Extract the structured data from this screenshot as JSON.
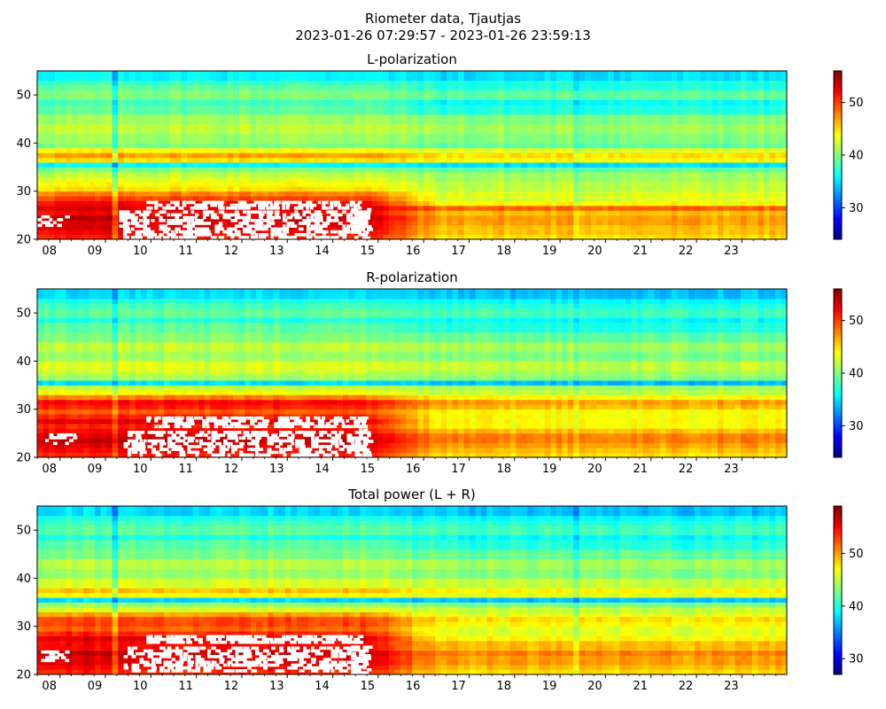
{
  "figure": {
    "title_line1": "Riometer data, Tjautjas",
    "title_line2": "2023-01-26 07:29:57 - 2023-01-26 23:59:13"
  },
  "colormap": [
    "#00007f",
    "#0000ff",
    "#007fff",
    "#00ffff",
    "#7fff7f",
    "#ffff00",
    "#ff7f00",
    "#ff0000",
    "#7f0000"
  ],
  "chart_data": [
    {
      "type": "heatmap",
      "title": "L-polarization",
      "x_range": [
        "2023-01-26 07:29:57",
        "2023-01-26 23:59:13"
      ],
      "x_ticks": [
        "08",
        "09",
        "10",
        "11",
        "12",
        "13",
        "14",
        "15",
        "16",
        "17",
        "18",
        "19",
        "20",
        "21",
        "22",
        "23"
      ],
      "ylim": [
        20,
        55
      ],
      "y_ticks": [
        20,
        30,
        40,
        50
      ],
      "colorbar": {
        "range": [
          24,
          56
        ],
        "ticks": [
          30,
          40,
          50
        ]
      },
      "bands": [
        {
          "y": [
            20,
            21
          ],
          "before_15": 51,
          "after_15": 45
        },
        {
          "y": [
            21,
            22
          ],
          "before_15": 52,
          "after_15": 46
        },
        {
          "y": [
            22,
            23
          ],
          "before_15": 53,
          "after_15": 46
        },
        {
          "y": [
            23,
            24
          ],
          "before_15": 53,
          "after_15": 47
        },
        {
          "y": [
            24,
            25
          ],
          "before_15": 54,
          "after_15": 47
        },
        {
          "y": [
            25,
            26
          ],
          "before_15": 52,
          "after_15": 46
        },
        {
          "y": [
            26,
            27
          ],
          "before_15": 53,
          "after_15": 49
        },
        {
          "y": [
            27,
            28
          ],
          "before_15": 52,
          "after_15": 44
        },
        {
          "y": [
            28,
            29
          ],
          "before_15": 50,
          "after_15": 43
        },
        {
          "y": [
            29,
            30
          ],
          "before_15": 48,
          "after_15": 43
        },
        {
          "y": [
            30,
            31
          ],
          "before_15": 45,
          "after_15": 42
        },
        {
          "y": [
            31,
            32
          ],
          "before_15": 44,
          "after_15": 42
        },
        {
          "y": [
            32,
            33
          ],
          "before_15": 43,
          "after_15": 41
        },
        {
          "y": [
            33,
            34
          ],
          "before_15": 42,
          "after_15": 41
        },
        {
          "y": [
            34,
            35
          ],
          "before_15": 40,
          "after_15": 39
        },
        {
          "y": [
            35,
            36
          ],
          "before_15": 36,
          "after_15": 35
        },
        {
          "y": [
            36,
            37
          ],
          "before_15": 45,
          "after_15": 44
        },
        {
          "y": [
            37,
            38
          ],
          "before_15": 47,
          "after_15": 45
        },
        {
          "y": [
            38,
            39
          ],
          "before_15": 44,
          "after_15": 43
        },
        {
          "y": [
            39,
            40
          ],
          "before_15": 40,
          "after_15": 39
        },
        {
          "y": [
            40,
            42
          ],
          "before_15": 41,
          "after_15": 40
        },
        {
          "y": [
            42,
            44
          ],
          "before_15": 42,
          "after_15": 41
        },
        {
          "y": [
            44,
            46
          ],
          "before_15": 41,
          "after_15": 40
        },
        {
          "y": [
            46,
            48
          ],
          "before_15": 39,
          "after_15": 37
        },
        {
          "y": [
            48,
            49
          ],
          "before_15": 38,
          "after_15": 36
        },
        {
          "y": [
            49,
            51
          ],
          "before_15": 40,
          "after_15": 39
        },
        {
          "y": [
            51,
            52
          ],
          "before_15": 39,
          "after_15": 37
        },
        {
          "y": [
            52,
            53
          ],
          "before_15": 38,
          "after_15": 37
        },
        {
          "y": [
            53,
            55
          ],
          "before_15": 36,
          "after_15": 35
        }
      ],
      "saturated_regions": [
        {
          "t": [
            9.9,
            14.6
          ],
          "y": [
            26.5,
            28
          ],
          "density": 0.7
        },
        {
          "t": [
            9.3,
            14.7
          ],
          "y": [
            20.5,
            26
          ],
          "density": 0.55
        },
        {
          "t": [
            7.5,
            8.2
          ],
          "y": [
            23,
            25
          ],
          "density": 0.4
        },
        {
          "t": [
            14.4,
            14.8
          ],
          "y": [
            20,
            26.5
          ],
          "density": 0.6
        }
      ]
    },
    {
      "type": "heatmap",
      "title": "R-polarization",
      "x_range": [
        "2023-01-26 07:29:57",
        "2023-01-26 23:59:13"
      ],
      "x_ticks": [
        "08",
        "09",
        "10",
        "11",
        "12",
        "13",
        "14",
        "15",
        "16",
        "17",
        "18",
        "19",
        "20",
        "21",
        "22",
        "23"
      ],
      "ylim": [
        20,
        55
      ],
      "y_ticks": [
        20,
        30,
        40,
        50
      ],
      "colorbar": {
        "range": [
          24,
          56
        ],
        "ticks": [
          30,
          40,
          50
        ]
      },
      "bands": [
        {
          "y": [
            20,
            21
          ],
          "before_15": 51,
          "after_15": 45
        },
        {
          "y": [
            21,
            22
          ],
          "before_15": 52,
          "after_15": 46
        },
        {
          "y": [
            22,
            23
          ],
          "before_15": 53,
          "after_15": 47
        },
        {
          "y": [
            23,
            24
          ],
          "before_15": 54,
          "after_15": 48
        },
        {
          "y": [
            24,
            25
          ],
          "before_15": 53,
          "after_15": 48
        },
        {
          "y": [
            25,
            26
          ],
          "before_15": 52,
          "after_15": 46
        },
        {
          "y": [
            26,
            27
          ],
          "before_15": 51,
          "after_15": 44
        },
        {
          "y": [
            27,
            28
          ],
          "before_15": 53,
          "after_15": 44
        },
        {
          "y": [
            28,
            29
          ],
          "before_15": 51,
          "after_15": 44
        },
        {
          "y": [
            29,
            30
          ],
          "before_15": 49,
          "after_15": 44
        },
        {
          "y": [
            30,
            31
          ],
          "before_15": 51,
          "after_15": 46
        },
        {
          "y": [
            31,
            32
          ],
          "before_15": 52,
          "after_15": 47
        },
        {
          "y": [
            32,
            33
          ],
          "before_15": 48,
          "after_15": 44
        },
        {
          "y": [
            33,
            34
          ],
          "before_15": 44,
          "after_15": 42
        },
        {
          "y": [
            34,
            35
          ],
          "before_15": 42,
          "after_15": 41
        },
        {
          "y": [
            35,
            36
          ],
          "before_15": 35,
          "after_15": 34
        },
        {
          "y": [
            36,
            37
          ],
          "before_15": 41,
          "after_15": 40
        },
        {
          "y": [
            37,
            38
          ],
          "before_15": 42,
          "after_15": 41
        },
        {
          "y": [
            38,
            40
          ],
          "before_15": 43,
          "after_15": 42
        },
        {
          "y": [
            40,
            42
          ],
          "before_15": 41,
          "after_15": 40
        },
        {
          "y": [
            42,
            44
          ],
          "before_15": 42,
          "after_15": 41
        },
        {
          "y": [
            44,
            46
          ],
          "before_15": 40,
          "after_15": 39
        },
        {
          "y": [
            46,
            48
          ],
          "before_15": 39,
          "after_15": 37
        },
        {
          "y": [
            48,
            49
          ],
          "before_15": 37,
          "after_15": 36
        },
        {
          "y": [
            49,
            51
          ],
          "before_15": 39,
          "after_15": 38
        },
        {
          "y": [
            51,
            52
          ],
          "before_15": 38,
          "after_15": 37
        },
        {
          "y": [
            52,
            53
          ],
          "before_15": 37,
          "after_15": 36
        },
        {
          "y": [
            53,
            55
          ],
          "before_15": 35,
          "after_15": 34
        }
      ],
      "saturated_regions": [
        {
          "t": [
            9.9,
            14.7
          ],
          "y": [
            26.5,
            28.5
          ],
          "density": 0.65
        },
        {
          "t": [
            9.4,
            14.7
          ],
          "y": [
            20.5,
            25.5
          ],
          "density": 0.55
        },
        {
          "t": [
            7.5,
            8.3
          ],
          "y": [
            23,
            25
          ],
          "density": 0.45
        },
        {
          "t": [
            14.4,
            14.8
          ],
          "y": [
            20,
            26
          ],
          "density": 0.55
        }
      ]
    },
    {
      "type": "heatmap",
      "title": "Total power (L + R)",
      "x_range": [
        "2023-01-26 07:29:57",
        "2023-01-26 23:59:13"
      ],
      "x_ticks": [
        "08",
        "09",
        "10",
        "11",
        "12",
        "13",
        "14",
        "15",
        "16",
        "17",
        "18",
        "19",
        "20",
        "21",
        "22",
        "23"
      ],
      "ylim": [
        20,
        55
      ],
      "y_ticks": [
        20,
        30,
        40,
        50
      ],
      "colorbar": {
        "range": [
          27,
          59
        ],
        "ticks": [
          30,
          40,
          50
        ]
      },
      "bands": [
        {
          "y": [
            20,
            21
          ],
          "before_15": 54,
          "after_15": 48
        },
        {
          "y": [
            21,
            22
          ],
          "before_15": 55,
          "after_15": 49
        },
        {
          "y": [
            22,
            23
          ],
          "before_15": 56,
          "after_15": 50
        },
        {
          "y": [
            23,
            24
          ],
          "before_15": 56,
          "after_15": 50
        },
        {
          "y": [
            24,
            25
          ],
          "before_15": 57,
          "after_15": 51
        },
        {
          "y": [
            25,
            26
          ],
          "before_15": 55,
          "after_15": 49
        },
        {
          "y": [
            26,
            27
          ],
          "before_15": 55,
          "after_15": 49
        },
        {
          "y": [
            27,
            28
          ],
          "before_15": 56,
          "after_15": 47
        },
        {
          "y": [
            28,
            29
          ],
          "before_15": 54,
          "after_15": 46
        },
        {
          "y": [
            29,
            30
          ],
          "before_15": 52,
          "after_15": 46
        },
        {
          "y": [
            30,
            31
          ],
          "before_15": 53,
          "after_15": 47
        },
        {
          "y": [
            31,
            32
          ],
          "before_15": 53,
          "after_15": 48
        },
        {
          "y": [
            32,
            33
          ],
          "before_15": 50,
          "after_15": 46
        },
        {
          "y": [
            33,
            34
          ],
          "before_15": 46,
          "after_15": 45
        },
        {
          "y": [
            34,
            35
          ],
          "before_15": 44,
          "after_15": 43
        },
        {
          "y": [
            35,
            36
          ],
          "before_15": 38,
          "after_15": 37
        },
        {
          "y": [
            36,
            37
          ],
          "before_15": 47,
          "after_15": 46
        },
        {
          "y": [
            37,
            38
          ],
          "before_15": 49,
          "after_15": 47
        },
        {
          "y": [
            38,
            40
          ],
          "before_15": 46,
          "after_15": 45
        },
        {
          "y": [
            40,
            42
          ],
          "before_15": 44,
          "after_15": 43
        },
        {
          "y": [
            42,
            44
          ],
          "before_15": 45,
          "after_15": 44
        },
        {
          "y": [
            44,
            46
          ],
          "before_15": 43,
          "after_15": 42
        },
        {
          "y": [
            46,
            48
          ],
          "before_15": 42,
          "after_15": 40
        },
        {
          "y": [
            48,
            49
          ],
          "before_15": 40,
          "after_15": 39
        },
        {
          "y": [
            49,
            51
          ],
          "before_15": 42,
          "after_15": 41
        },
        {
          "y": [
            51,
            52
          ],
          "before_15": 41,
          "after_15": 40
        },
        {
          "y": [
            52,
            53
          ],
          "before_15": 40,
          "after_15": 39
        },
        {
          "y": [
            53,
            55
          ],
          "before_15": 38,
          "after_15": 37
        }
      ],
      "saturated_regions": [
        {
          "t": [
            9.9,
            14.6
          ],
          "y": [
            26.5,
            28.2
          ],
          "density": 0.7
        },
        {
          "t": [
            9.4,
            14.7
          ],
          "y": [
            20.5,
            25.8
          ],
          "density": 0.55
        },
        {
          "t": [
            7.5,
            8.2
          ],
          "y": [
            23,
            25
          ],
          "density": 0.45
        },
        {
          "t": [
            14.4,
            14.8
          ],
          "y": [
            20,
            26
          ],
          "density": 0.6
        }
      ]
    }
  ]
}
